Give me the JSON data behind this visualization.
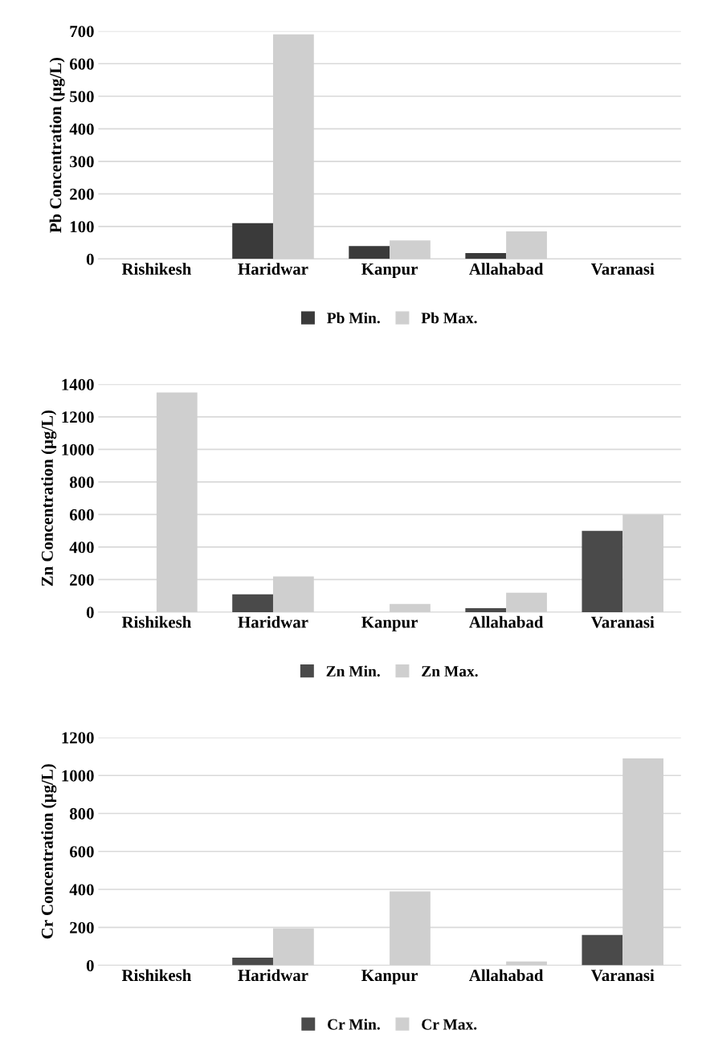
{
  "chart_data": [
    {
      "type": "bar",
      "ylabel": "Pb Concentration (µg/L)",
      "categories": [
        "Rishikesh",
        "Haridwar",
        "Kanpur",
        "Allahabad",
        "Varanasi"
      ],
      "ylim": [
        0,
        700
      ],
      "yticks": [
        0,
        100,
        200,
        300,
        400,
        500,
        600,
        700
      ],
      "grid": "y",
      "legend": "bottom",
      "series": [
        {
          "name": "Pb Min.",
          "color": "#3a3a3a",
          "values": [
            0,
            110,
            40,
            18,
            0
          ]
        },
        {
          "name": "Pb Max.",
          "color": "#cfcfcf",
          "values": [
            0,
            690,
            57,
            85,
            0
          ]
        }
      ]
    },
    {
      "type": "bar",
      "ylabel": "Zn Concentration (µg/L)",
      "categories": [
        "Rishikesh",
        "Haridwar",
        "Kanpur",
        "Allahabad",
        "Varanasi"
      ],
      "ylim": [
        0,
        1400
      ],
      "yticks": [
        0,
        200,
        400,
        600,
        800,
        1000,
        1200,
        1400
      ],
      "grid": "y",
      "legend": "bottom",
      "series": [
        {
          "name": "Zn Min.",
          "color": "#4a4a4a",
          "values": [
            0,
            110,
            0,
            25,
            500
          ]
        },
        {
          "name": "Zn Max.",
          "color": "#cfcfcf",
          "values": [
            1350,
            220,
            50,
            120,
            600
          ]
        }
      ]
    },
    {
      "type": "bar",
      "ylabel": "Cr Concentration (µg/L)",
      "categories": [
        "Rishikesh",
        "Haridwar",
        "Kanpur",
        "Allahabad",
        "Varanasi"
      ],
      "ylim": [
        0,
        1200
      ],
      "yticks": [
        0,
        200,
        400,
        600,
        800,
        1000,
        1200
      ],
      "grid": "y",
      "legend": "bottom",
      "series": [
        {
          "name": "Cr Min.",
          "color": "#4a4a4a",
          "values": [
            0,
            40,
            0,
            0,
            160
          ]
        },
        {
          "name": "Cr Max.",
          "color": "#cfcfcf",
          "values": [
            0,
            195,
            390,
            20,
            1090
          ]
        }
      ]
    }
  ]
}
